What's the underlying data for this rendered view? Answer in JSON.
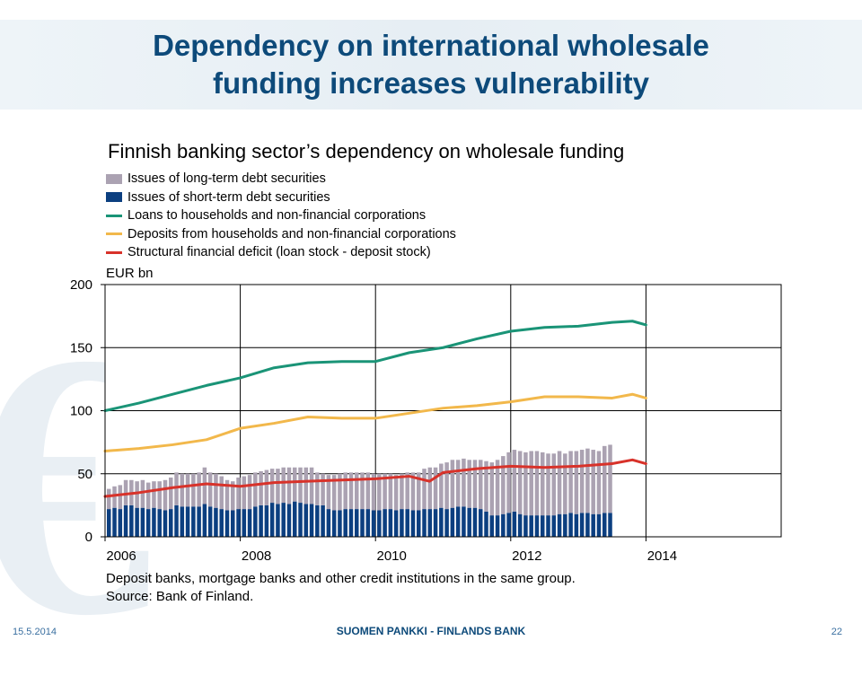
{
  "slide": {
    "title_line1": "Dependency on international wholesale",
    "title_line2": "funding increases vulnerability"
  },
  "chart_data": {
    "type": "bar",
    "title": "Finnish banking sector’s dependency on wholesale funding",
    "ylabel": "EUR bn",
    "ylim": [
      0,
      200
    ],
    "yticks": [
      0,
      50,
      100,
      150,
      200
    ],
    "xlim": [
      2006,
      2016
    ],
    "xticks": [
      "2006",
      "2008",
      "2010",
      "2012",
      "2014"
    ],
    "grid": true,
    "legend_position": "top-left",
    "colors": {
      "long_term": "#aba2b2",
      "short_term": "#0c3f80",
      "loans": "#1a9477",
      "deposits": "#f2b84b",
      "deficit": "#d8322a"
    },
    "legend": [
      {
        "key": "long_term",
        "label": "Issues of long-term debt securities",
        "kind": "box"
      },
      {
        "key": "short_term",
        "label": "Issues of short-term debt securities",
        "kind": "box"
      },
      {
        "key": "loans",
        "label": "Loans to households and non-financial corporations",
        "kind": "line"
      },
      {
        "key": "deposits",
        "label": "Deposits from households and non-financial corporations",
        "kind": "line"
      },
      {
        "key": "deficit",
        "label": "Structural financial deficit (loan stock - deposit stock)",
        "kind": "line"
      }
    ],
    "bars": {
      "x_start": 2006.0,
      "step": 0.0833,
      "short_term": [
        22,
        23,
        22,
        25,
        25,
        23,
        23,
        22,
        23,
        22,
        21,
        22,
        25,
        24,
        24,
        24,
        24,
        26,
        24,
        23,
        22,
        21,
        21,
        22,
        22,
        22,
        24,
        25,
        25,
        27,
        26,
        27,
        26,
        28,
        27,
        26,
        26,
        25,
        25,
        22,
        21,
        21,
        22,
        22,
        22,
        22,
        22,
        21,
        21,
        22,
        22,
        21,
        22,
        22,
        21,
        21,
        22,
        22,
        22,
        23,
        22,
        23,
        24,
        24,
        23,
        23,
        22,
        20,
        17,
        17,
        18,
        19,
        20,
        18,
        17,
        17,
        17,
        17,
        17,
        17,
        18,
        18,
        19,
        18,
        19,
        19,
        18,
        18,
        19,
        19
      ],
      "long_term": [
        16,
        17,
        19,
        20,
        20,
        21,
        22,
        21,
        21,
        22,
        24,
        25,
        26,
        26,
        26,
        26,
        27,
        29,
        27,
        27,
        26,
        24,
        23,
        25,
        26,
        27,
        27,
        27,
        28,
        27,
        28,
        28,
        29,
        27,
        28,
        29,
        29,
        26,
        25,
        27,
        28,
        29,
        29,
        29,
        29,
        29,
        29,
        29,
        29,
        28,
        28,
        28,
        28,
        29,
        30,
        30,
        32,
        33,
        33,
        35,
        37,
        38,
        37,
        38,
        38,
        38,
        39,
        40,
        42,
        44,
        46,
        48,
        49,
        50,
        50,
        51,
        51,
        50,
        49,
        49,
        50,
        48,
        49,
        50,
        50,
        51,
        51,
        50,
        53,
        54
      ]
    },
    "loans": {
      "x": [
        2006.0,
        2006.5,
        2007.0,
        2007.5,
        2008.0,
        2008.5,
        2009.0,
        2009.5,
        2010.0,
        2010.5,
        2011.0,
        2011.5,
        2012.0,
        2012.5,
        2013.0,
        2013.5,
        2013.8,
        2014.0
      ],
      "y": [
        100,
        106,
        113,
        120,
        126,
        134,
        138,
        139,
        139,
        146,
        150,
        157,
        163,
        166,
        167,
        170,
        171,
        168
      ]
    },
    "deposits": {
      "x": [
        2006.0,
        2006.5,
        2007.0,
        2007.5,
        2008.0,
        2008.5,
        2009.0,
        2009.5,
        2010.0,
        2010.5,
        2011.0,
        2011.5,
        2012.0,
        2012.5,
        2013.0,
        2013.5,
        2013.8,
        2014.0
      ],
      "y": [
        68,
        70,
        73,
        77,
        86,
        90,
        95,
        94,
        94,
        98,
        102,
        104,
        107,
        111,
        111,
        110,
        113,
        110
      ]
    },
    "deficit": {
      "x": [
        2006.0,
        2006.5,
        2007.0,
        2007.5,
        2008.0,
        2008.5,
        2009.0,
        2009.5,
        2010.0,
        2010.5,
        2010.8,
        2011.0,
        2011.5,
        2012.0,
        2012.5,
        2013.0,
        2013.5,
        2013.8,
        2014.0
      ],
      "y": [
        32,
        35,
        39,
        42,
        40,
        43,
        44,
        45,
        46,
        48,
        44,
        51,
        54,
        56,
        55,
        56,
        58,
        61,
        58
      ]
    }
  },
  "notes": {
    "line1": "Deposit banks, mortgage banks and other credit institutions in the same group.",
    "line2": "Source: Bank of Finland."
  },
  "footer": {
    "date": "15.5.2014",
    "bank": "SUOMEN PANKKI - FINLANDS BANK",
    "page": "22"
  }
}
